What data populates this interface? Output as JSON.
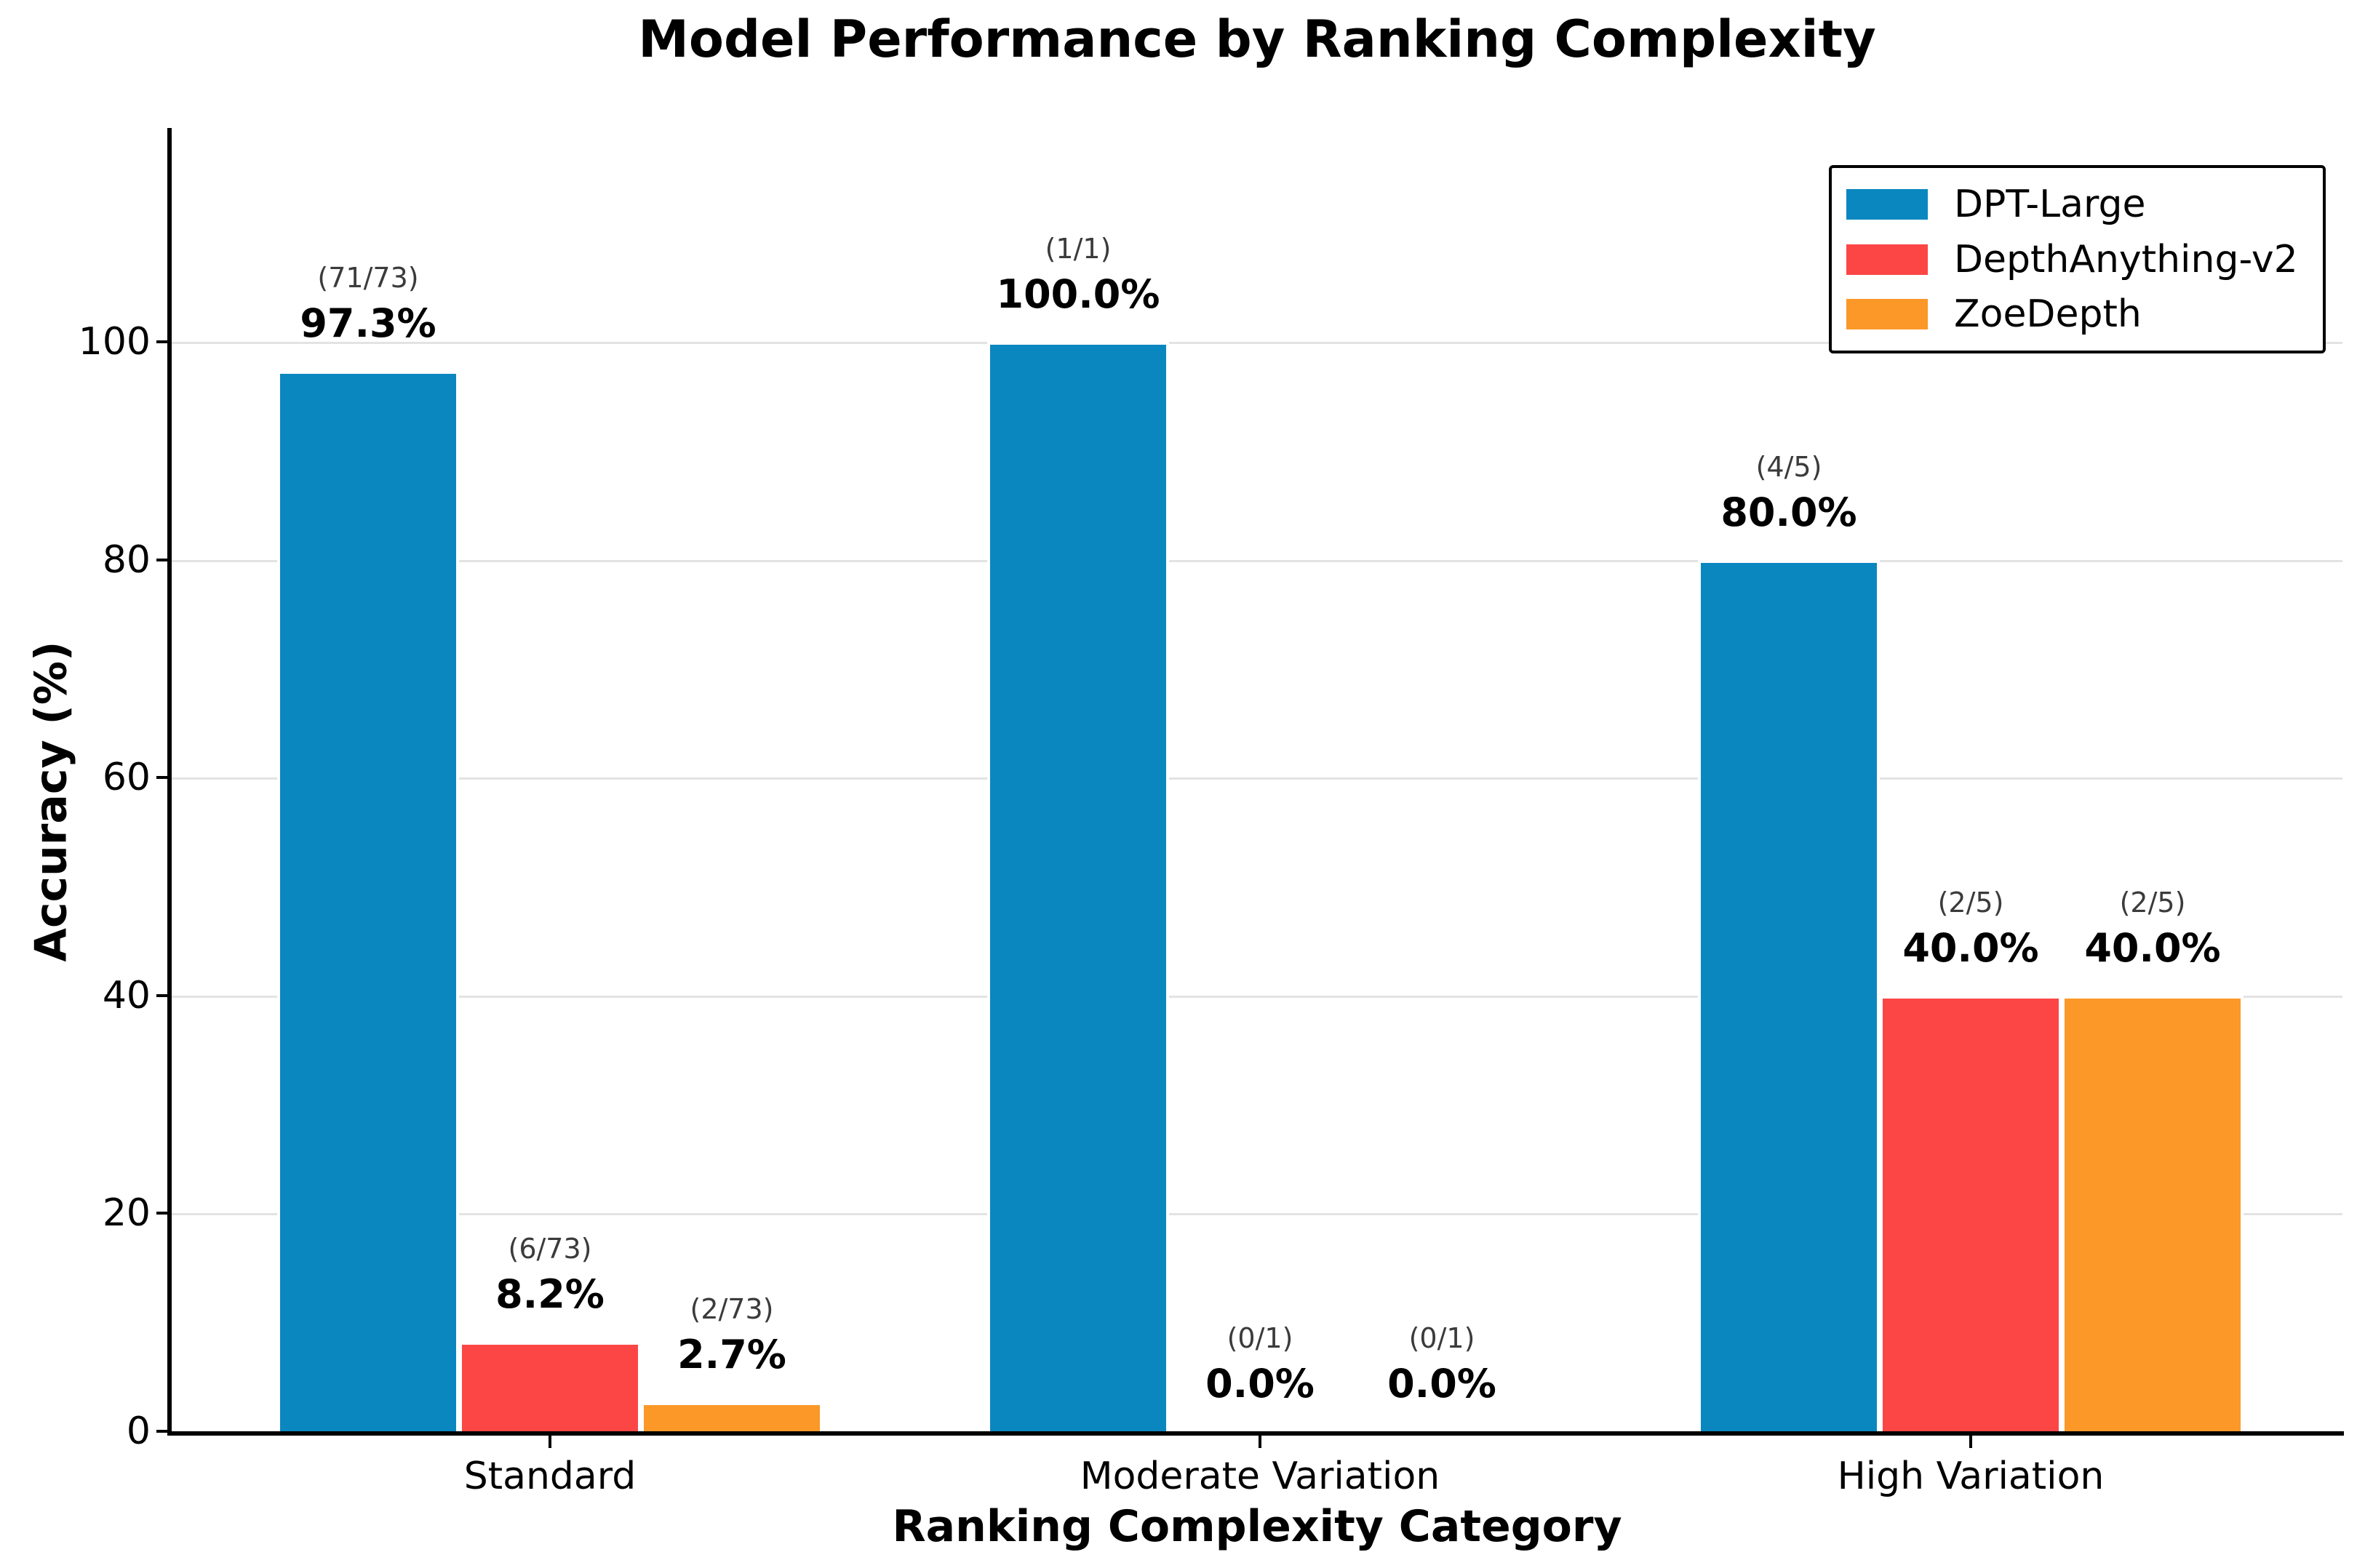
{
  "chart_data": {
    "type": "bar",
    "title": "Model Performance by Ranking Complexity",
    "xlabel": "Ranking Complexity Category",
    "ylabel": "Accuracy (%)",
    "categories": [
      "Standard",
      "Moderate Variation",
      "High Variation"
    ],
    "yticks": [
      0,
      20,
      40,
      60,
      80,
      100
    ],
    "ylim": [
      0,
      119
    ],
    "grid": "horizontal-light-gray",
    "legend_position": "upper right",
    "bar_edge_color": "#ffffff",
    "series": [
      {
        "name": "DPT-Large",
        "color": "#0b87c0",
        "values": [
          97.3,
          100.0,
          80.0
        ],
        "pct_labels": [
          "97.3%",
          "100.0%",
          "80.0%"
        ],
        "count_labels": [
          "(71/73)",
          "(1/1)",
          "(4/5)"
        ]
      },
      {
        "name": "DepthAnything-v2",
        "color": "#fc4646",
        "values": [
          8.2,
          0.0,
          40.0
        ],
        "pct_labels": [
          "8.2%",
          "0.0%",
          "40.0%"
        ],
        "count_labels": [
          "(6/73)",
          "(0/1)",
          "(2/5)"
        ]
      },
      {
        "name": "ZoeDepth",
        "color": "#fb9827",
        "values": [
          2.7,
          0.0,
          40.0
        ],
        "pct_labels": [
          "2.7%",
          "0.0%",
          "40.0%"
        ],
        "count_labels": [
          "(2/73)",
          "(0/1)",
          "(2/5)"
        ]
      }
    ]
  }
}
